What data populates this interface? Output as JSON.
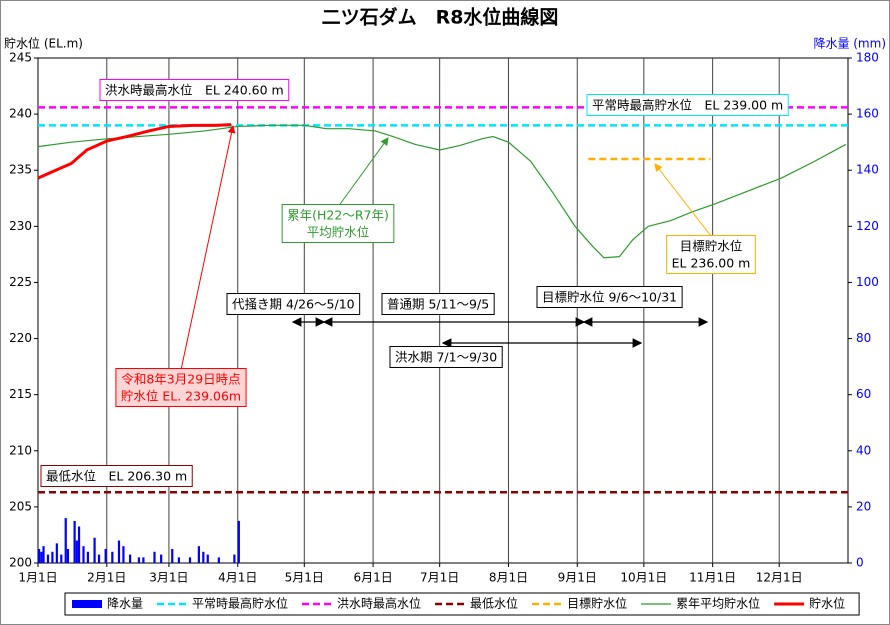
{
  "chart_data": {
    "type": "combo",
    "title": "二ツ石ダム　R8水位曲線図",
    "ylabel": "貯水位 (EL.m)",
    "y2label": "降水量 (mm)",
    "xlim": [
      0,
      365
    ],
    "xticks": [
      {
        "value": 0,
        "label": "1月1日"
      },
      {
        "value": 31,
        "label": "2月1日"
      },
      {
        "value": 59,
        "label": "3月1日"
      },
      {
        "value": 90,
        "label": "4月1日"
      },
      {
        "value": 120,
        "label": "5月1日"
      },
      {
        "value": 151,
        "label": "6月1日"
      },
      {
        "value": 181,
        "label": "7月1日"
      },
      {
        "value": 212,
        "label": "8月1日"
      },
      {
        "value": 243,
        "label": "9月1日"
      },
      {
        "value": 273,
        "label": "10月1日"
      },
      {
        "value": 304,
        "label": "11月1日"
      },
      {
        "value": 334,
        "label": "12月1日"
      }
    ],
    "ylim": [
      200,
      245
    ],
    "yticks": [
      200,
      205,
      210,
      215,
      220,
      225,
      230,
      235,
      240,
      245
    ],
    "y2lim": [
      0,
      180
    ],
    "y2ticks": [
      0,
      20,
      40,
      60,
      80,
      100,
      120,
      140,
      160,
      180
    ],
    "grid": "x",
    "legend": "bottom",
    "series": [
      {
        "name": "降水量",
        "kind": "bar",
        "axis": "y2",
        "color": "#0000ff",
        "x": [
          0,
          1,
          2,
          4,
          6,
          8,
          10,
          12,
          13,
          16,
          17,
          18,
          20,
          22,
          25,
          27,
          30,
          33,
          36,
          38,
          41,
          45,
          47,
          52,
          55,
          60,
          63,
          68,
          72,
          74,
          76,
          81,
          88,
          90
        ],
        "values": [
          5,
          4,
          6,
          3,
          4,
          7,
          3,
          16,
          5,
          15,
          8,
          13,
          6,
          4,
          9,
          3,
          5,
          4,
          8,
          6,
          3,
          2,
          2,
          4,
          3,
          5,
          2,
          2,
          6,
          4,
          3,
          2,
          3,
          15
        ]
      },
      {
        "name": "平常時最高貯水位",
        "kind": "hline",
        "color": "#00e5ff",
        "value": 239.0
      },
      {
        "name": "洪水時最高水位",
        "kind": "hline",
        "color": "#ff00ff",
        "value": 240.6
      },
      {
        "name": "最低水位",
        "kind": "hline",
        "color": "#8b0000",
        "value": 206.3
      },
      {
        "name": "目標貯水位",
        "kind": "hline",
        "color": "#ffb000",
        "value": 236.0,
        "x": [
          248,
          303
        ]
      },
      {
        "name": "累年平均貯水位",
        "kind": "line",
        "color": "#2e9b2e",
        "width": 1.2,
        "x": [
          0,
          15,
          31,
          45,
          59,
          75,
          90,
          105,
          120,
          130,
          140,
          152,
          160,
          170,
          181,
          190,
          200,
          205,
          212,
          222,
          232,
          242,
          250,
          255,
          262,
          268,
          275,
          285,
          295,
          305,
          318,
          335,
          350,
          364
        ],
        "values": [
          237.1,
          237.5,
          237.8,
          238.0,
          238.2,
          238.5,
          238.9,
          239.0,
          239.0,
          238.7,
          238.7,
          238.5,
          238.0,
          237.3,
          236.8,
          237.2,
          237.8,
          238.0,
          237.5,
          235.8,
          233.0,
          230.0,
          228.2,
          227.2,
          227.3,
          228.8,
          230.0,
          230.5,
          231.3,
          232.0,
          233.0,
          234.3,
          235.8,
          237.3
        ]
      },
      {
        "name": "貯水位",
        "kind": "line",
        "color": "#ff0000",
        "width": 3,
        "x": [
          0,
          8,
          15,
          22,
          31,
          40,
          50,
          59,
          70,
          80,
          87
        ],
        "values": [
          234.3,
          235.0,
          235.6,
          236.8,
          237.6,
          238.0,
          238.5,
          238.9,
          239.0,
          239.0,
          239.06
        ]
      }
    ],
    "annotations": [
      [
        "洪水時最高水位　EL 240.60 m"
      ],
      [
        "平常時最高貯水位　EL 239.00 m"
      ],
      [
        "累年(H22～R7年)",
        "平均貯水位"
      ],
      [
        "目標貯水位",
        "EL 236.00 m"
      ],
      [
        "代掻き期 4/26～5/10"
      ],
      [
        "普通期 5/11～9/5"
      ],
      [
        "目標貯水位 9/6～10/31"
      ],
      [
        "洪水期 7/1～9/30"
      ],
      [
        "令和8年3月29日時点",
        "貯水位 EL. 239.06m"
      ],
      [
        "最低水位　EL 206.30 m"
      ]
    ]
  }
}
